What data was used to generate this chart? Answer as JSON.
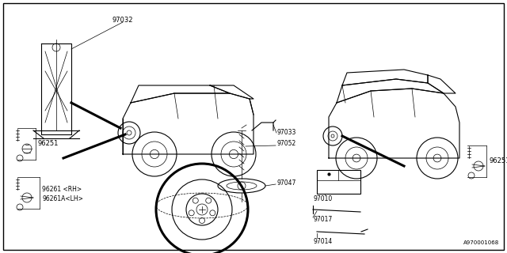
{
  "bg_color": "#ffffff",
  "line_color": "#000000",
  "fig_width": 6.4,
  "fig_height": 3.2,
  "watermark": "A970001068",
  "label_97032": "97032",
  "label_97033": "97033",
  "label_97052": "97052",
  "label_97047": "97047",
  "label_96251": "96251",
  "label_96261rh": "96261 <RH>",
  "label_96261lh": "96261A<LH>",
  "label_97010": "97010",
  "label_97017": "97017",
  "label_97014": "97014"
}
